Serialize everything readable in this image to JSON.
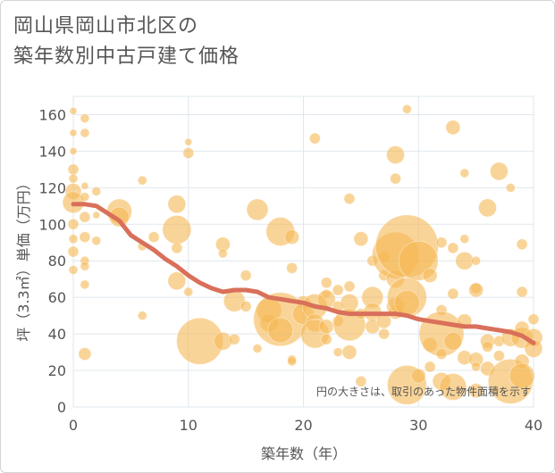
{
  "title": {
    "line1": "岡山県岡山市北区の",
    "line2": "築年数別中古戸建て価格"
  },
  "colors": {
    "bubble": "#f5b754",
    "line": "#d9705a",
    "grid": "#dfe7ee",
    "text": "#555555"
  },
  "chart_data": {
    "type": "scatter",
    "title": "岡山県岡山市北区の築年数別中古戸建て価格",
    "xlabel": "築年数（年）",
    "ylabel": "坪（3.3㎡）単価（万円）",
    "xlim": [
      0,
      40
    ],
    "ylim": [
      0,
      170
    ],
    "xticks": [
      0,
      10,
      20,
      30,
      40
    ],
    "yticks": [
      0,
      20,
      40,
      60,
      80,
      100,
      120,
      140,
      160
    ],
    "annotation": "円の大きさは、取引のあった物件面積を示す",
    "bubbles": [
      {
        "x": 0,
        "y": 162,
        "s": 4
      },
      {
        "x": 0,
        "y": 150,
        "s": 4
      },
      {
        "x": 0,
        "y": 140,
        "s": 4
      },
      {
        "x": 0,
        "y": 130,
        "s": 6
      },
      {
        "x": 0,
        "y": 125,
        "s": 5
      },
      {
        "x": 0,
        "y": 118,
        "s": 9
      },
      {
        "x": 0,
        "y": 112,
        "s": 12
      },
      {
        "x": 0,
        "y": 100,
        "s": 6
      },
      {
        "x": 0,
        "y": 92,
        "s": 5
      },
      {
        "x": 0,
        "y": 85,
        "s": 6
      },
      {
        "x": 0,
        "y": 75,
        "s": 5
      },
      {
        "x": 1,
        "y": 158,
        "s": 5
      },
      {
        "x": 1,
        "y": 150,
        "s": 5
      },
      {
        "x": 1,
        "y": 121,
        "s": 4
      },
      {
        "x": 1,
        "y": 115,
        "s": 5
      },
      {
        "x": 1,
        "y": 104,
        "s": 6
      },
      {
        "x": 1,
        "y": 93,
        "s": 6
      },
      {
        "x": 1,
        "y": 80,
        "s": 5
      },
      {
        "x": 1,
        "y": 77,
        "s": 5
      },
      {
        "x": 1,
        "y": 67,
        "s": 5
      },
      {
        "x": 1,
        "y": 29,
        "s": 7
      },
      {
        "x": 2,
        "y": 118,
        "s": 5
      },
      {
        "x": 2,
        "y": 91,
        "s": 5
      },
      {
        "x": 2,
        "y": 105,
        "s": 4
      },
      {
        "x": 4,
        "y": 107,
        "s": 14
      },
      {
        "x": 4,
        "y": 104,
        "s": 11
      },
      {
        "x": 6,
        "y": 124,
        "s": 5
      },
      {
        "x": 6,
        "y": 88,
        "s": 5
      },
      {
        "x": 6,
        "y": 50,
        "s": 5
      },
      {
        "x": 7,
        "y": 93,
        "s": 6
      },
      {
        "x": 9,
        "y": 111,
        "s": 10
      },
      {
        "x": 9,
        "y": 97,
        "s": 16
      },
      {
        "x": 9,
        "y": 87,
        "s": 6
      },
      {
        "x": 9,
        "y": 69,
        "s": 10
      },
      {
        "x": 10,
        "y": 145,
        "s": 4
      },
      {
        "x": 10,
        "y": 139,
        "s": 6
      },
      {
        "x": 10,
        "y": 63,
        "s": 5
      },
      {
        "x": 11,
        "y": 36,
        "s": 26
      },
      {
        "x": 13,
        "y": 89,
        "s": 8
      },
      {
        "x": 13,
        "y": 84,
        "s": 5
      },
      {
        "x": 13,
        "y": 36,
        "s": 10
      },
      {
        "x": 14,
        "y": 58,
        "s": 12
      },
      {
        "x": 14,
        "y": 37,
        "s": 6
      },
      {
        "x": 15,
        "y": 72,
        "s": 6
      },
      {
        "x": 15,
        "y": 55,
        "s": 6
      },
      {
        "x": 16,
        "y": 108,
        "s": 12
      },
      {
        "x": 16,
        "y": 32,
        "s": 5
      },
      {
        "x": 17,
        "y": 53,
        "s": 14
      },
      {
        "x": 17,
        "y": 46,
        "s": 10
      },
      {
        "x": 18,
        "y": 96,
        "s": 16
      },
      {
        "x": 18,
        "y": 48,
        "s": 30
      },
      {
        "x": 18,
        "y": 42,
        "s": 14
      },
      {
        "x": 19,
        "y": 93,
        "s": 8
      },
      {
        "x": 19,
        "y": 76,
        "s": 6
      },
      {
        "x": 19,
        "y": 26,
        "s": 5
      },
      {
        "x": 19,
        "y": 25,
        "s": 5
      },
      {
        "x": 20,
        "y": 57,
        "s": 8
      },
      {
        "x": 20,
        "y": 51,
        "s": 12
      },
      {
        "x": 21,
        "y": 147,
        "s": 6
      },
      {
        "x": 21,
        "y": 55,
        "s": 14
      },
      {
        "x": 21,
        "y": 46,
        "s": 10
      },
      {
        "x": 21,
        "y": 40,
        "s": 16
      },
      {
        "x": 22,
        "y": 68,
        "s": 6
      },
      {
        "x": 22,
        "y": 62,
        "s": 5
      },
      {
        "x": 22,
        "y": 59,
        "s": 10
      },
      {
        "x": 22,
        "y": 44,
        "s": 8
      },
      {
        "x": 22,
        "y": 37,
        "s": 6
      },
      {
        "x": 23,
        "y": 64,
        "s": 6
      },
      {
        "x": 23,
        "y": 55,
        "s": 6
      },
      {
        "x": 23,
        "y": 47,
        "s": 6
      },
      {
        "x": 23,
        "y": 30,
        "s": 5
      },
      {
        "x": 24,
        "y": 114,
        "s": 6
      },
      {
        "x": 24,
        "y": 66,
        "s": 6
      },
      {
        "x": 24,
        "y": 57,
        "s": 10
      },
      {
        "x": 24,
        "y": 45,
        "s": 18
      },
      {
        "x": 24,
        "y": 30,
        "s": 8
      },
      {
        "x": 25,
        "y": 92,
        "s": 8
      },
      {
        "x": 25,
        "y": 51,
        "s": 6
      },
      {
        "x": 25,
        "y": 14,
        "s": 6
      },
      {
        "x": 26,
        "y": 80,
        "s": 6
      },
      {
        "x": 26,
        "y": 60,
        "s": 12
      },
      {
        "x": 26,
        "y": 52,
        "s": 10
      },
      {
        "x": 26,
        "y": 44,
        "s": 8
      },
      {
        "x": 27,
        "y": 82,
        "s": 6
      },
      {
        "x": 27,
        "y": 72,
        "s": 6
      },
      {
        "x": 27,
        "y": 47,
        "s": 8
      },
      {
        "x": 27,
        "y": 40,
        "s": 6
      },
      {
        "x": 28,
        "y": 138,
        "s": 10
      },
      {
        "x": 28,
        "y": 125,
        "s": 6
      },
      {
        "x": 28,
        "y": 83,
        "s": 26
      },
      {
        "x": 28,
        "y": 70,
        "s": 10
      },
      {
        "x": 28,
        "y": 55,
        "s": 10
      },
      {
        "x": 28,
        "y": 52,
        "s": 8
      },
      {
        "x": 29,
        "y": 163,
        "s": 5
      },
      {
        "x": 29,
        "y": 88,
        "s": 35
      },
      {
        "x": 29,
        "y": 60,
        "s": 22
      },
      {
        "x": 29,
        "y": 57,
        "s": 14
      },
      {
        "x": 29,
        "y": 12,
        "s": 22
      },
      {
        "x": 30,
        "y": 80,
        "s": 22
      },
      {
        "x": 30,
        "y": 17,
        "s": 8
      },
      {
        "x": 31,
        "y": 72,
        "s": 8
      },
      {
        "x": 31,
        "y": 34,
        "s": 8
      },
      {
        "x": 31,
        "y": 22,
        "s": 6
      },
      {
        "x": 32,
        "y": 90,
        "s": 6
      },
      {
        "x": 32,
        "y": 53,
        "s": 6
      },
      {
        "x": 32,
        "y": 40,
        "s": 25
      },
      {
        "x": 32,
        "y": 29,
        "s": 6
      },
      {
        "x": 32,
        "y": 14,
        "s": 10
      },
      {
        "x": 33,
        "y": 153,
        "s": 8
      },
      {
        "x": 33,
        "y": 87,
        "s": 6
      },
      {
        "x": 33,
        "y": 62,
        "s": 6
      },
      {
        "x": 33,
        "y": 36,
        "s": 10
      },
      {
        "x": 33,
        "y": 11,
        "s": 15
      },
      {
        "x": 34,
        "y": 128,
        "s": 5
      },
      {
        "x": 34,
        "y": 92,
        "s": 5
      },
      {
        "x": 34,
        "y": 80,
        "s": 10
      },
      {
        "x": 34,
        "y": 47,
        "s": 8
      },
      {
        "x": 34,
        "y": 27,
        "s": 8
      },
      {
        "x": 35,
        "y": 80,
        "s": 5
      },
      {
        "x": 35,
        "y": 65,
        "s": 6
      },
      {
        "x": 35,
        "y": 64,
        "s": 8
      },
      {
        "x": 35,
        "y": 26,
        "s": 8
      },
      {
        "x": 35,
        "y": 22,
        "s": 5
      },
      {
        "x": 35,
        "y": 9,
        "s": 8
      },
      {
        "x": 36,
        "y": 109,
        "s": 10
      },
      {
        "x": 36,
        "y": 36,
        "s": 8
      },
      {
        "x": 36,
        "y": 33,
        "s": 6
      },
      {
        "x": 36,
        "y": 21,
        "s": 8
      },
      {
        "x": 37,
        "y": 129,
        "s": 10
      },
      {
        "x": 37,
        "y": 36,
        "s": 6
      },
      {
        "x": 37,
        "y": 28,
        "s": 6
      },
      {
        "x": 38,
        "y": 120,
        "s": 5
      },
      {
        "x": 38,
        "y": 38,
        "s": 10
      },
      {
        "x": 38,
        "y": 14,
        "s": 25
      },
      {
        "x": 39,
        "y": 89,
        "s": 6
      },
      {
        "x": 39,
        "y": 63,
        "s": 6
      },
      {
        "x": 39,
        "y": 43,
        "s": 8
      },
      {
        "x": 39,
        "y": 38,
        "s": 12
      },
      {
        "x": 39,
        "y": 25,
        "s": 8
      },
      {
        "x": 39,
        "y": 17,
        "s": 14
      },
      {
        "x": 40,
        "y": 48,
        "s": 6
      },
      {
        "x": 40,
        "y": 38,
        "s": 10
      },
      {
        "x": 40,
        "y": 32,
        "s": 10
      }
    ],
    "trend": {
      "x": [
        0,
        1,
        2,
        3,
        4,
        5,
        6,
        7,
        8,
        9,
        10,
        11,
        12,
        13,
        14,
        15,
        16,
        17,
        18,
        19,
        20,
        21,
        22,
        23,
        24,
        25,
        26,
        27,
        28,
        29,
        30,
        31,
        32,
        33,
        34,
        35,
        36,
        37,
        38,
        39,
        40
      ],
      "y": [
        111,
        111,
        110,
        106,
        102,
        94,
        90,
        86,
        81,
        77,
        72,
        68,
        65,
        63,
        64,
        64,
        63,
        60,
        59,
        58,
        57,
        55,
        54,
        52,
        51,
        51,
        51,
        51,
        51,
        50,
        48,
        47,
        46,
        45,
        44,
        44,
        43,
        42,
        41,
        39,
        35
      ]
    }
  }
}
